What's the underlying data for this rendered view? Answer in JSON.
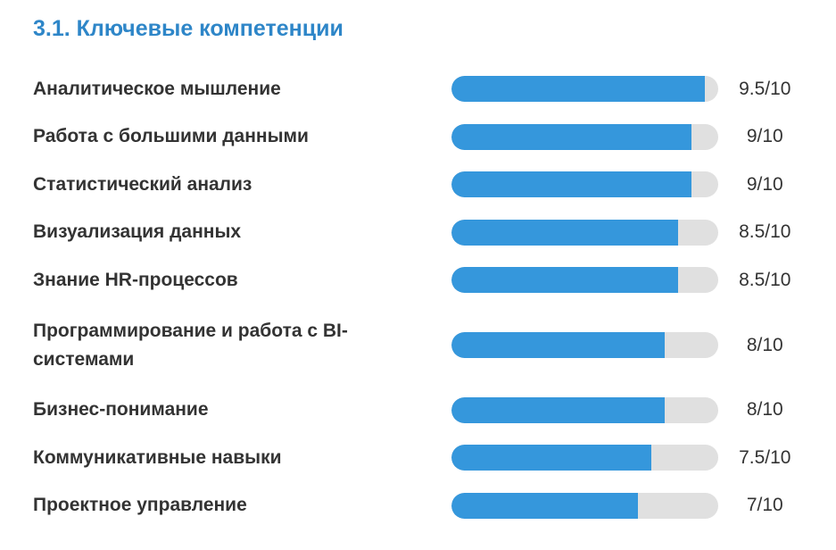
{
  "section": {
    "title": "3.1. Ключевые компетенции"
  },
  "colors": {
    "title": "#2e86c8",
    "bar_fill": "#3597dc",
    "bar_track": "#e0e0e0",
    "text": "#333333"
  },
  "skills": [
    {
      "name": "Аналитическое мышление",
      "score_label": "9.5/10",
      "level": 0.95
    },
    {
      "name": "Работа с большими данными",
      "score_label": "9/10",
      "level": 0.9
    },
    {
      "name": "Статистический анализ",
      "score_label": "9/10",
      "level": 0.9
    },
    {
      "name": "Визуализация данных",
      "score_label": "8.5/10",
      "level": 0.85
    },
    {
      "name": "Знание HR-процессов",
      "score_label": "8.5/10",
      "level": 0.85
    },
    {
      "name": "Программирование и работа с BI-системами",
      "score_label": "8/10",
      "level": 0.8
    },
    {
      "name": "Бизнес-понимание",
      "score_label": "8/10",
      "level": 0.8
    },
    {
      "name": "Коммуникативные навыки",
      "score_label": "7.5/10",
      "level": 0.75
    },
    {
      "name": "Проектное управление",
      "score_label": "7/10",
      "level": 0.7
    }
  ]
}
